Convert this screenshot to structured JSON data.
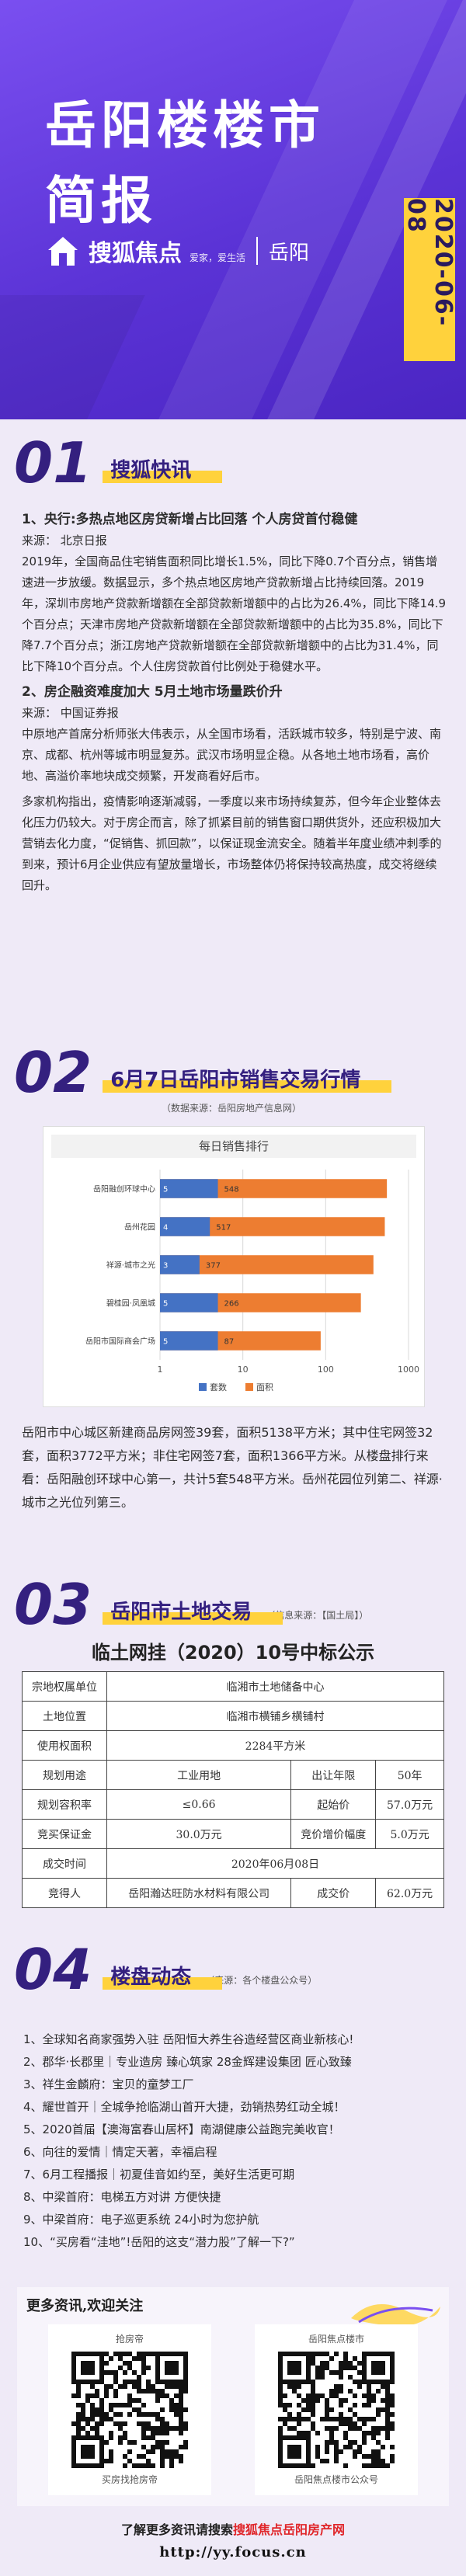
{
  "header": {
    "title_line1": "岳阳楼楼市",
    "title_line2": "简报",
    "brand": "搜狐焦点",
    "slogan": "爱家，爱生活",
    "city": "岳阳",
    "date": "2020-06-08"
  },
  "news": {
    "number": "01",
    "heading": "搜狐快讯",
    "items": [
      {
        "title": "1、央行:多热点地区房贷新增占比回落 个人房贷首付稳健",
        "source": "来源： 北京日报",
        "paragraphs": [
          "2019年，全国商品住宅销售面积同比增长1.5%，同比下降0.7个百分点，销售增速进一步放缓。数据显示，多个热点地区房地产贷款新增占比持续回落。2019年，深圳市房地产贷款新增额在全部贷款新增额中的占比为26.4%，同比下降14.9个百分点；天津市房地产贷款新增额在全部贷款新增额中的占比为35.8%，同比下降7.7个百分点；浙江房地产贷款新增额在全部贷款新增额中的占比为31.4%，同比下降10个百分点。个人住房贷款首付比例处于稳健水平。"
        ]
      },
      {
        "title": "2、房企融资难度加大 5月土地市场量跌价升",
        "source": "来源： 中国证券报",
        "paragraphs": [
          "中原地产首席分析师张大伟表示，从全国市场看，活跃城市较多，特别是宁波、南京、成都、杭州等城市明显复苏。武汉市场明显企稳。从各地土地市场看，高价地、高溢价率地块成交频繁，开发商看好后市。",
          "多家机构指出，疫情影响逐渐减弱，一季度以来市场持续复苏，但今年企业整体去化压力仍较大。对于房企而言，除了抓紧目前的销售窗口期供货外，还应积极加大营销去化力度，“促销售、抓回款”，以保证现金流安全。随着半年度业绩冲刺季的到来，预计6月企业供应有望放量增长，市场整体仍将保持较高热度，成交将继续回升。"
        ]
      }
    ]
  },
  "market": {
    "number": "02",
    "heading": "6月7日岳阳市销售交易行情",
    "note": "（数据来源：岳阳房地产信息网）",
    "summary": "岳阳市中心城区新建商品房网签39套，面积5138平方米；其中住宅网签32套，面积3772平方米；非住宅网签7套，面积1366平方米。从楼盘排行来看：岳阳融创环球中心第一，共计5套548平方米。岳州花园位列第二、祥源·城市之光位列第三。"
  },
  "chart_data": {
    "type": "bar",
    "orientation": "horizontal",
    "title": "每日销售排行",
    "categories": [
      "岳阳融创环球中心",
      "岳州花园",
      "祥源·城市之光",
      "碧桂园·凤凰城",
      "岳阳市国际商会广场"
    ],
    "series": [
      {
        "name": "套数",
        "color": "#4472c4",
        "values": [
          5,
          4,
          3,
          5,
          5
        ]
      },
      {
        "name": "面积",
        "color": "#ed7d31",
        "values": [
          548,
          517,
          377,
          266,
          87
        ]
      }
    ],
    "xlim": [
      1,
      1000
    ],
    "xticks": [
      1,
      10,
      100,
      1000
    ],
    "log_scale": true,
    "grid": true,
    "legend": "bottom"
  },
  "land": {
    "number": "03",
    "heading": "岳阳市土地交易",
    "note": "（信息来源：【国土局】）",
    "table_title": "临土网挂（2020）10号中标公示",
    "rows": [
      [
        "宗地权属单位",
        "临湘市土地储备中心"
      ],
      [
        "土地位置",
        "临湘市横铺乡横铺村"
      ],
      [
        "使用权面积",
        "2284平方米"
      ],
      [
        "规划用途",
        "工业用地",
        "出让年限",
        "50年"
      ],
      [
        "规划容积率",
        "≤0.66",
        "起始价",
        "57.0万元"
      ],
      [
        "竞买保证金",
        "30.0万元",
        "竞价增价幅度",
        "5.0万元"
      ],
      [
        "成交时间",
        "2020年06月08日"
      ],
      [
        "竞得人",
        "岳阳瀚达旺防水材料有限公司",
        "成交价",
        "62.0万元"
      ]
    ]
  },
  "dynamics": {
    "number": "04",
    "heading": "楼盘动态",
    "note": "（来源：各个楼盘公众号）",
    "items": [
      "1、全球知名商家强势入驻 岳阳恒大养生谷造经营区商业新核心!",
      "2、郡华·长郡里｜专业造房 臻心筑家 28金辉建设集团 匠心致臻",
      "3、祥生金麟府：宝贝的童梦工厂",
      "4、耀世首开｜全城争抢临湖山首开大捷，劲销热势红动全城！",
      "5、2020首届【澳海富春山居杯】南湖健康公益跑完美收官！",
      "6、向往的爱情｜情定天著，幸福启程",
      "7、6月工程播报｜初夏佳音如约至，美好生活更可期",
      "8、中梁首府：电梯五方对讲 方便快捷",
      "9、中梁首府：电子巡更系统 24小时为您护航",
      "10、“买房看“洼地”!岳阳的这支“潜力股”了解一下?”"
    ]
  },
  "footer": {
    "follow": "更多资讯,欢迎关注",
    "qr": [
      {
        "title": "抢房帝",
        "caption": "买房找抢房帝"
      },
      {
        "title": "岳阳焦点楼市",
        "caption": "岳阳焦点楼市公众号"
      }
    ],
    "search_prefix": "了解更多资讯请搜索",
    "search_site": "搜狐焦点岳阳房产网",
    "url": "http://yy.focus.cn"
  }
}
